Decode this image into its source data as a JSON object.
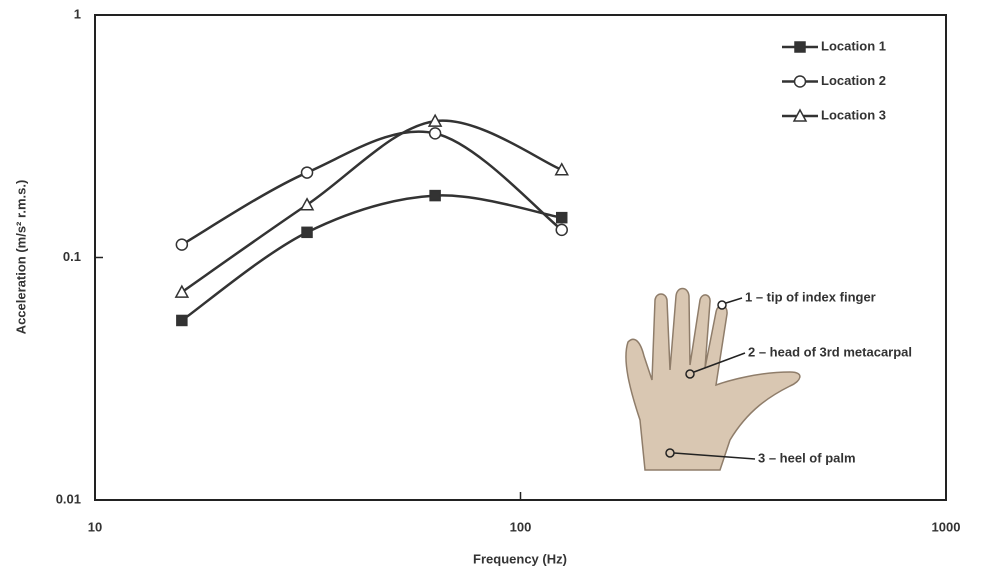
{
  "chart_data": {
    "type": "line",
    "x_label": "Frequency (Hz)",
    "y_label": "Acceleration (m/s² r.m.s.)",
    "xscale": "log",
    "yscale": "log",
    "xlim": [
      10,
      1000
    ],
    "ylim": [
      0.01,
      1
    ],
    "xticks": [
      10,
      100,
      1000
    ],
    "yticks": [
      0.01,
      0.1,
      1
    ],
    "x": [
      16,
      31.5,
      63,
      125
    ],
    "series": [
      {
        "name": "Location 1",
        "color": "#333333",
        "marker": "square",
        "values": [
          0.055,
          0.127,
          0.18,
          0.146
        ]
      },
      {
        "name": "Location 2",
        "color": "#333333",
        "marker": "circle",
        "values": [
          0.113,
          0.224,
          0.325,
          0.13
        ]
      },
      {
        "name": "Location 3",
        "color": "#333333",
        "marker": "triangle",
        "values": [
          0.072,
          0.165,
          0.365,
          0.23
        ]
      }
    ],
    "legend": "top-right",
    "annotations": [
      "1 – tip of index finger",
      "2 – head of 3rd metacarpal",
      "3 – heel of palm"
    ]
  }
}
